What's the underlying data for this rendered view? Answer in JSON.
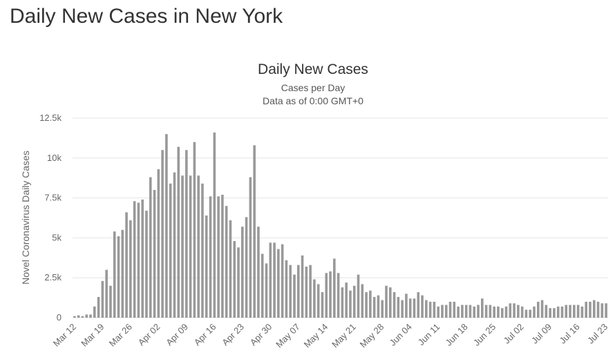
{
  "header": {
    "title": "Daily New Cases in New York"
  },
  "chart_data": {
    "type": "bar",
    "title": "Daily New Cases",
    "subtitle": [
      "Cases per Day",
      "Data as of 0:00 GMT+0"
    ],
    "y_label": "Novel Coronavirus Daily Cases",
    "color": "#999999",
    "grid": true,
    "ylim": [
      0,
      12500
    ],
    "yticks": [
      0,
      {
        "value": 2500,
        "label": "2.5k"
      },
      {
        "value": 5000,
        "label": "5k"
      },
      {
        "value": 7500,
        "label": "7.5k"
      },
      {
        "value": 10000,
        "label": "10k"
      },
      {
        "value": 12500,
        "label": "12.5k"
      }
    ],
    "categories": [
      "Mar 12",
      null,
      null,
      null,
      null,
      null,
      null,
      "Mar 19",
      null,
      null,
      null,
      null,
      null,
      null,
      "Mar 26",
      null,
      null,
      null,
      null,
      null,
      null,
      "Apr 02",
      null,
      null,
      null,
      null,
      null,
      null,
      "Apr 09",
      null,
      null,
      null,
      null,
      null,
      null,
      "Apr 16",
      null,
      null,
      null,
      null,
      null,
      null,
      "Apr 23",
      null,
      null,
      null,
      null,
      null,
      null,
      "Apr 30",
      null,
      null,
      null,
      null,
      null,
      null,
      "May 07",
      null,
      null,
      null,
      null,
      null,
      null,
      "May 14",
      null,
      null,
      null,
      null,
      null,
      null,
      "May 21",
      null,
      null,
      null,
      null,
      null,
      null,
      "May 28",
      null,
      null,
      null,
      null,
      null,
      null,
      "Jun 04",
      null,
      null,
      null,
      null,
      null,
      null,
      "Jun 11",
      null,
      null,
      null,
      null,
      null,
      null,
      "Jun 18",
      null,
      null,
      null,
      null,
      null,
      null,
      "Jun 25",
      null,
      null,
      null,
      null,
      null,
      null,
      "Jul 02",
      null,
      null,
      null,
      null,
      null,
      null,
      "Jul 09",
      null,
      null,
      null,
      null,
      null,
      null,
      "Jul 16",
      null,
      null,
      null,
      null,
      null,
      null,
      "Jul 23"
    ],
    "values": [
      100,
      150,
      100,
      200,
      200,
      700,
      1300,
      2300,
      3000,
      2000,
      5400,
      5100,
      5500,
      6600,
      6100,
      7300,
      7200,
      7400,
      6700,
      8800,
      8000,
      9300,
      10500,
      11500,
      8400,
      9100,
      10700,
      8900,
      10500,
      8900,
      11000,
      8900,
      8400,
      6400,
      7600,
      11600,
      7600,
      7700,
      7000,
      6100,
      4800,
      4400,
      5700,
      6300,
      8800,
      10800,
      5700,
      4000,
      3400,
      4700,
      4700,
      4300,
      4600,
      3600,
      3300,
      2700,
      3300,
      3900,
      3200,
      3300,
      2400,
      2100,
      1600,
      2800,
      2900,
      3700,
      2800,
      1900,
      2200,
      1700,
      2000,
      2700,
      2100,
      1600,
      1700,
      1300,
      1400,
      1100,
      2000,
      1900,
      1600,
      1300,
      1100,
      1500,
      1200,
      1200,
      1600,
      1400,
      1100,
      1000,
      1000,
      700,
      800,
      800,
      1000,
      1000,
      700,
      800,
      800,
      800,
      700,
      800,
      1200,
      800,
      800,
      700,
      700,
      600,
      700,
      900,
      900,
      800,
      700,
      500,
      500,
      700,
      1000,
      1100,
      800,
      600,
      600,
      700,
      700,
      800,
      800,
      800,
      800,
      700,
      1000,
      1000,
      1100,
      1000,
      900,
      900
    ]
  }
}
